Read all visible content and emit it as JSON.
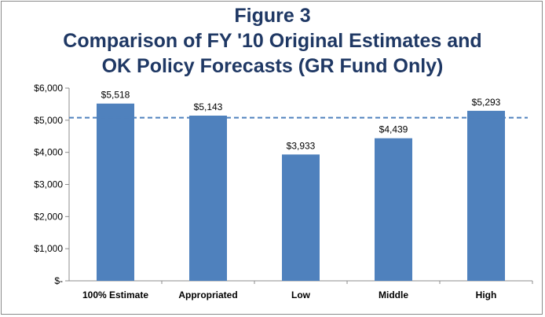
{
  "title_lines": [
    "Figure 3",
    "Comparison of FY '10 Original Estimates and",
    "OK Policy Forecasts (GR Fund Only)"
  ],
  "chart_data": {
    "type": "bar",
    "categories": [
      "100% Estimate",
      "Appropriated",
      "Low",
      "Middle",
      "High"
    ],
    "values": [
      5518,
      5143,
      3933,
      4439,
      5293
    ],
    "value_labels": [
      "$5,518",
      "$5,143",
      "$3,933",
      "$4,439",
      "$5,293"
    ],
    "ylim": [
      0,
      6000
    ],
    "yticks": [
      0,
      1000,
      2000,
      3000,
      4000,
      5000,
      6000
    ],
    "ytick_labels": [
      "$-",
      "$1,000",
      "$2,000",
      "$3,000",
      "$4,000",
      "$5,000",
      "$6,000"
    ],
    "reference_line": 5080,
    "grid": false,
    "legend": "none",
    "colors": {
      "bar": "#4f81bd",
      "reference_line": "#4f81bd",
      "title": "#1f3864",
      "axis": "#8c8c8c",
      "text": "#000000"
    }
  }
}
